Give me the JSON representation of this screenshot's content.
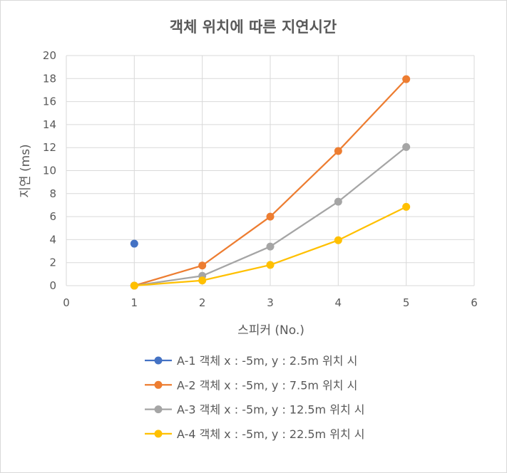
{
  "chart_data": {
    "type": "scatter",
    "title": "객체 위치에 따른 지연시간",
    "xlabel": "스피커 (No.)",
    "ylabel": "지연 (ms)",
    "xlim": [
      0,
      6
    ],
    "ylim": [
      0,
      20
    ],
    "xticks": [
      0,
      1,
      2,
      3,
      4,
      5,
      6
    ],
    "yticks": [
      0,
      2,
      4,
      6,
      8,
      10,
      12,
      14,
      16,
      18,
      20
    ],
    "grid": true,
    "legend_position": "bottom",
    "series": [
      {
        "name": "A-1 객체 x : -5m, y : 2.5m 위치 시",
        "color": "#4472c4",
        "x": [
          1
        ],
        "y": [
          3.65
        ]
      },
      {
        "name": "A-2 객체 x : -5m, y : 7.5m 위치 시",
        "color": "#ed7d31",
        "x": [
          1,
          2,
          3,
          4,
          5
        ],
        "y": [
          0.0,
          1.75,
          6.0,
          11.7,
          17.95
        ]
      },
      {
        "name": "A-3 객체 x : -5m, y : 12.5m 위치 시",
        "color": "#a5a5a5",
        "x": [
          1,
          2,
          3,
          4,
          5
        ],
        "y": [
          0.0,
          0.85,
          3.4,
          7.3,
          12.05
        ]
      },
      {
        "name": "A-4 객체 x : -5m, y : 22.5m 위치 시",
        "color": "#ffc000",
        "x": [
          1,
          2,
          3,
          4,
          5
        ],
        "y": [
          0.0,
          0.45,
          1.8,
          3.95,
          6.85
        ]
      }
    ]
  }
}
